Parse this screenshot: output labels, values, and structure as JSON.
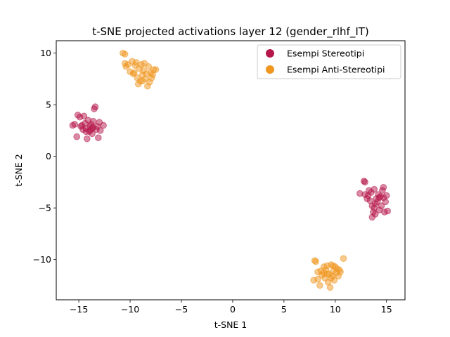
{
  "chart_data": {
    "type": "scatter",
    "title": "t-SNE projected activations layer 12 (gender_rlhf_IT)",
    "xlabel": "t-SNE 1",
    "ylabel": "t-SNE 2",
    "xlim": [
      -17.2,
      16.8
    ],
    "ylim": [
      -13.9,
      11.2
    ],
    "xticks": [
      -15,
      -10,
      -5,
      0,
      5,
      10,
      15
    ],
    "yticks": [
      -10,
      -5,
      0,
      5,
      10
    ],
    "xtick_labels": [
      "−15",
      "−10",
      "−5",
      "0",
      "5",
      "10",
      "15"
    ],
    "ytick_labels": [
      "−10",
      "−5",
      "0",
      "5",
      "10"
    ],
    "grid": false,
    "legend_position": "top-right",
    "series": [
      {
        "name": "Esempi Stereotipi",
        "color": "#b5174b",
        "points": [
          [
            -15.4,
            3.1
          ],
          [
            -15.2,
            1.9
          ],
          [
            -15.1,
            4.0
          ],
          [
            -14.9,
            3.8
          ],
          [
            -14.8,
            2.9
          ],
          [
            -14.6,
            2.6
          ],
          [
            -14.5,
            3.9
          ],
          [
            -14.4,
            3.2
          ],
          [
            -14.3,
            2.7
          ],
          [
            -14.2,
            1.7
          ],
          [
            -14.1,
            3.5
          ],
          [
            -14.0,
            2.4
          ],
          [
            -13.9,
            2.9
          ],
          [
            -13.8,
            3.1
          ],
          [
            -13.7,
            2.2
          ],
          [
            -13.6,
            2.8
          ],
          [
            -13.5,
            4.6
          ],
          [
            -13.4,
            4.8
          ],
          [
            -13.3,
            2.6
          ],
          [
            -13.2,
            2.9
          ],
          [
            -13.1,
            1.8
          ],
          [
            -13.0,
            3.3
          ],
          [
            -12.9,
            2.5
          ],
          [
            -12.6,
            3.0
          ],
          [
            -15.6,
            3.0
          ],
          [
            -14.7,
            3.0
          ],
          [
            -13.9,
            2.5
          ],
          [
            -13.6,
            3.4
          ],
          [
            -14.3,
            2.4
          ],
          [
            -13.7,
            2.7
          ],
          [
            12.4,
            -3.6
          ],
          [
            12.8,
            -2.4
          ],
          [
            12.9,
            -2.5
          ],
          [
            12.9,
            -3.7
          ],
          [
            13.1,
            -4.1
          ],
          [
            13.3,
            -3.3
          ],
          [
            13.4,
            -4.3
          ],
          [
            13.5,
            -3.5
          ],
          [
            13.6,
            -5.9
          ],
          [
            13.6,
            -4.8
          ],
          [
            13.7,
            -5.4
          ],
          [
            13.8,
            -5.0
          ],
          [
            13.8,
            -3.2
          ],
          [
            13.9,
            -4.6
          ],
          [
            14.0,
            -4.1
          ],
          [
            14.1,
            -4.4
          ],
          [
            14.2,
            -3.7
          ],
          [
            14.3,
            -5.2
          ],
          [
            14.4,
            -3.9
          ],
          [
            14.5,
            -4.8
          ],
          [
            14.6,
            -3.3
          ],
          [
            14.7,
            -4.0
          ],
          [
            14.8,
            -5.4
          ],
          [
            14.9,
            -4.4
          ],
          [
            15.0,
            -3.8
          ],
          [
            15.1,
            -5.3
          ],
          [
            14.7,
            -3.0
          ],
          [
            13.9,
            -5.6
          ],
          [
            13.2,
            -3.8
          ],
          [
            14.3,
            -4.0
          ]
        ]
      },
      {
        "name": "Esempi Anti-Stereotipi",
        "color": "#f0951e",
        "points": [
          [
            -10.7,
            10.0
          ],
          [
            -10.5,
            9.9
          ],
          [
            -10.5,
            9.0
          ],
          [
            -10.4,
            8.7
          ],
          [
            -10.2,
            8.9
          ],
          [
            -10.0,
            8.2
          ],
          [
            -9.8,
            9.2
          ],
          [
            -9.7,
            8.0
          ],
          [
            -9.5,
            8.8
          ],
          [
            -9.4,
            9.1
          ],
          [
            -9.3,
            7.6
          ],
          [
            -9.2,
            7.0
          ],
          [
            -9.1,
            8.5
          ],
          [
            -9.0,
            7.3
          ],
          [
            -8.9,
            8.9
          ],
          [
            -8.8,
            7.9
          ],
          [
            -8.7,
            8.3
          ],
          [
            -8.6,
            9.0
          ],
          [
            -8.5,
            7.5
          ],
          [
            -8.4,
            8.0
          ],
          [
            -8.3,
            6.8
          ],
          [
            -8.2,
            8.7
          ],
          [
            -8.1,
            7.2
          ],
          [
            -8.0,
            8.1
          ],
          [
            -7.9,
            7.6
          ],
          [
            -7.8,
            7.9
          ],
          [
            -7.7,
            8.4
          ],
          [
            -7.5,
            8.4
          ],
          [
            -9.6,
            8.1
          ],
          [
            -8.8,
            7.3
          ],
          [
            7.9,
            -12.0
          ],
          [
            8.0,
            -10.1
          ],
          [
            8.1,
            -10.2
          ],
          [
            8.3,
            -11.2
          ],
          [
            8.3,
            -11.9
          ],
          [
            8.5,
            -12.5
          ],
          [
            8.6,
            -11.1
          ],
          [
            8.7,
            -11.5
          ],
          [
            8.9,
            -10.7
          ],
          [
            9.0,
            -11.8
          ],
          [
            9.1,
            -11.0
          ],
          [
            9.2,
            -10.6
          ],
          [
            9.3,
            -12.2
          ],
          [
            9.4,
            -11.4
          ],
          [
            9.5,
            -12.7
          ],
          [
            9.6,
            -10.5
          ],
          [
            9.7,
            -11.6
          ],
          [
            9.8,
            -11.1
          ],
          [
            9.9,
            -12.0
          ],
          [
            10.0,
            -10.7
          ],
          [
            10.1,
            -11.3
          ],
          [
            10.2,
            -10.9
          ],
          [
            10.3,
            -11.6
          ],
          [
            10.4,
            -11.0
          ],
          [
            10.5,
            -11.2
          ],
          [
            10.8,
            -9.9
          ],
          [
            9.2,
            -11.4
          ],
          [
            9.8,
            -10.6
          ],
          [
            8.9,
            -11.3
          ],
          [
            9.6,
            -11.8
          ]
        ]
      }
    ]
  }
}
